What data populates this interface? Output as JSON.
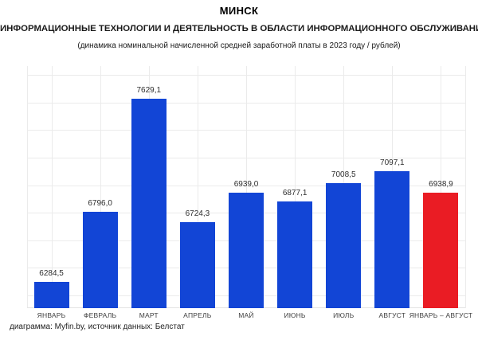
{
  "chart_data": {
    "type": "bar",
    "title": "МИНСК",
    "subtitle": "ИНФОРМАЦИОННЫЕ ТЕХНОЛОГИИ И ДЕЯТЕЛЬНОСТЬ В ОБЛАСТИ ИНФОРМАЦИОННОГО ОБСЛУЖИВАНИЯ",
    "note": "(динамика номинальной начисленной средней заработной платы в 2023 году / рублей)",
    "xlabel": "",
    "ylabel": "",
    "categories": [
      "ЯНВАРЬ",
      "ФЕВРАЛЬ",
      "МАРТ",
      "АПРЕЛЬ",
      "МАЙ",
      "ИЮНЬ",
      "ИЮЛЬ",
      "АВГУСТ",
      "ЯНВАРЬ – АВГУСТ"
    ],
    "values": [
      6284.5,
      6796.0,
      7629.1,
      6724.3,
      6939.0,
      6877.1,
      7008.5,
      7097.1,
      6938.9
    ],
    "value_labels": [
      "6284,5",
      "6796,0",
      "7629,1",
      "6724,3",
      "6939,0",
      "6877,1",
      "7008,5",
      "7097,1",
      "6938,9"
    ],
    "bar_colors": [
      "#1245d6",
      "#1245d6",
      "#1245d6",
      "#1245d6",
      "#1245d6",
      "#1245d6",
      "#1245d6",
      "#1245d6",
      "#ea1c24"
    ],
    "highlight_index": 8,
    "ylim": [
      6090,
      7870
    ],
    "grid": true,
    "legend": false
  },
  "colors": {
    "bar_blue": "#1245d6",
    "bar_red": "#ea1c24",
    "gridline": "#ebebeb"
  },
  "footer": {
    "credit": "диаграмма: Myfin.by, источник данных: Белстат"
  }
}
